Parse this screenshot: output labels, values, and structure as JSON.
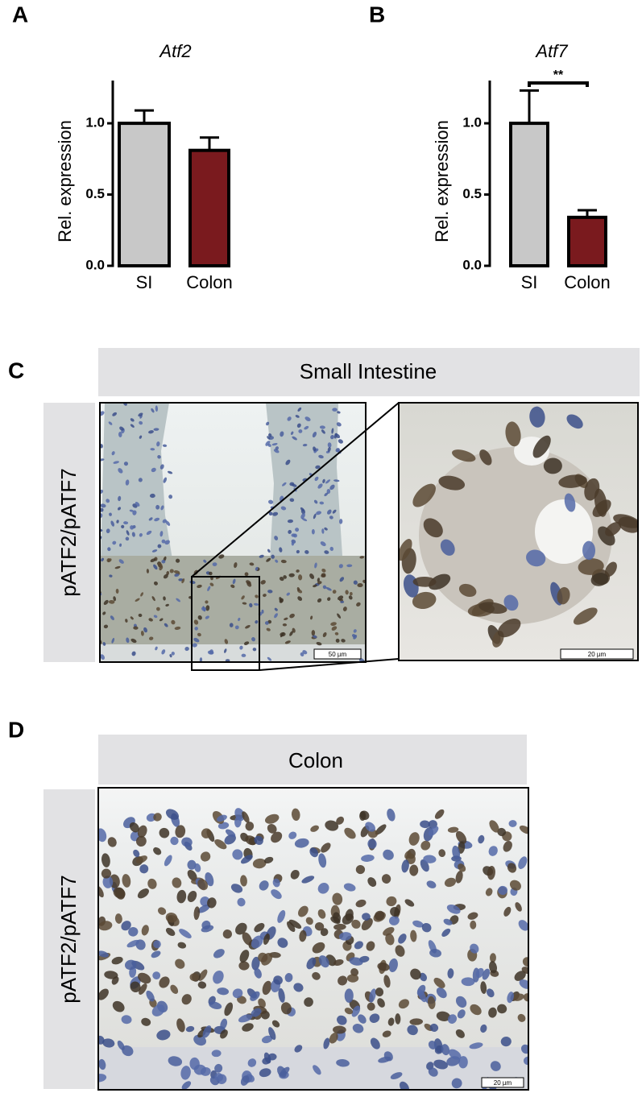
{
  "panel_labels": [
    "A",
    "B",
    "C",
    "D"
  ],
  "chart_data": [
    {
      "type": "bar",
      "title": "Atf2",
      "y_label": "Rel. expression",
      "categories": [
        "SI",
        "Colon"
      ],
      "values": [
        1.0,
        0.81
      ],
      "errors": [
        0.09,
        0.09
      ],
      "colors": [
        "#c8c8c8",
        "#7a1a1e"
      ],
      "ylim": [
        0,
        1.3
      ],
      "yticks": [
        {
          "value": 0,
          "label": "0.0"
        },
        0.5,
        {
          "value": 1,
          "label": "1.0"
        }
      ]
    },
    {
      "type": "bar",
      "title": "Atf7",
      "y_label": "Rel. expression",
      "categories": [
        "SI",
        "Colon"
      ],
      "values": [
        1.0,
        0.34
      ],
      "errors": [
        0.23,
        0.05
      ],
      "colors": [
        "#c8c8c8",
        "#7a1a1e"
      ],
      "ylim": [
        0,
        1.3
      ],
      "yticks": [
        {
          "value": 0,
          "label": "0.0"
        },
        0.5,
        {
          "value": 1,
          "label": "1.0"
        }
      ],
      "annotation": "**"
    }
  ],
  "images": [
    {
      "header": "Small Intestine",
      "side_label": "pATF2/pATF7",
      "scale_bars": [
        "50 µm",
        "20 µm"
      ]
    },
    {
      "header": "Colon",
      "side_label": "pATF2/pATF7",
      "scale_bars": [
        "20 µm"
      ]
    }
  ]
}
